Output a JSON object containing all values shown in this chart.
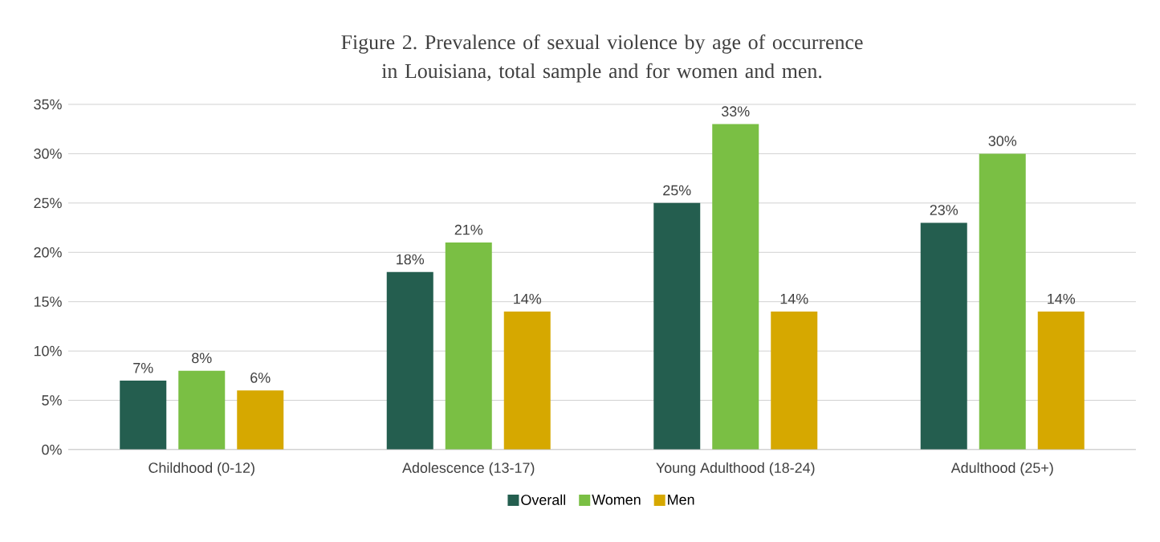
{
  "chart_data": {
    "type": "bar",
    "title": "Figure 2. Prevalence of sexual violence by age of occurrence in Louisiana, total sample and for women and men.",
    "categories": [
      "Childhood (0-12)",
      "Adolescence (13-17)",
      "Young Adulthood (18-24)",
      "Adulthood (25+)"
    ],
    "series": [
      {
        "name": "Overall",
        "color": "#245e4f",
        "values": [
          7,
          18,
          25,
          23
        ],
        "value_labels": [
          "7%",
          "18%",
          "25%",
          "23%"
        ]
      },
      {
        "name": "Women",
        "color": "#7abf44",
        "values": [
          8,
          21,
          33,
          30
        ],
        "value_labels": [
          "8%",
          "21%",
          "33%",
          "30%"
        ]
      },
      {
        "name": "Men",
        "color": "#d6a800",
        "values": [
          6,
          14,
          14,
          14
        ],
        "value_labels": [
          "6%",
          "14%",
          "14%",
          "14%"
        ]
      }
    ],
    "ylim": [
      0,
      35
    ],
    "yticks": [
      {
        "value": 0,
        "label": "0%"
      },
      {
        "value": 5,
        "label": "5%"
      },
      {
        "value": 10,
        "label": "10%"
      },
      {
        "value": 15,
        "label": "15%"
      },
      {
        "value": 20,
        "label": "20%"
      },
      {
        "value": 25,
        "label": "25%"
      },
      {
        "value": 30,
        "label": "30%"
      },
      {
        "value": 35,
        "label": "35%"
      }
    ],
    "grid": "y",
    "legend": "bottom"
  }
}
